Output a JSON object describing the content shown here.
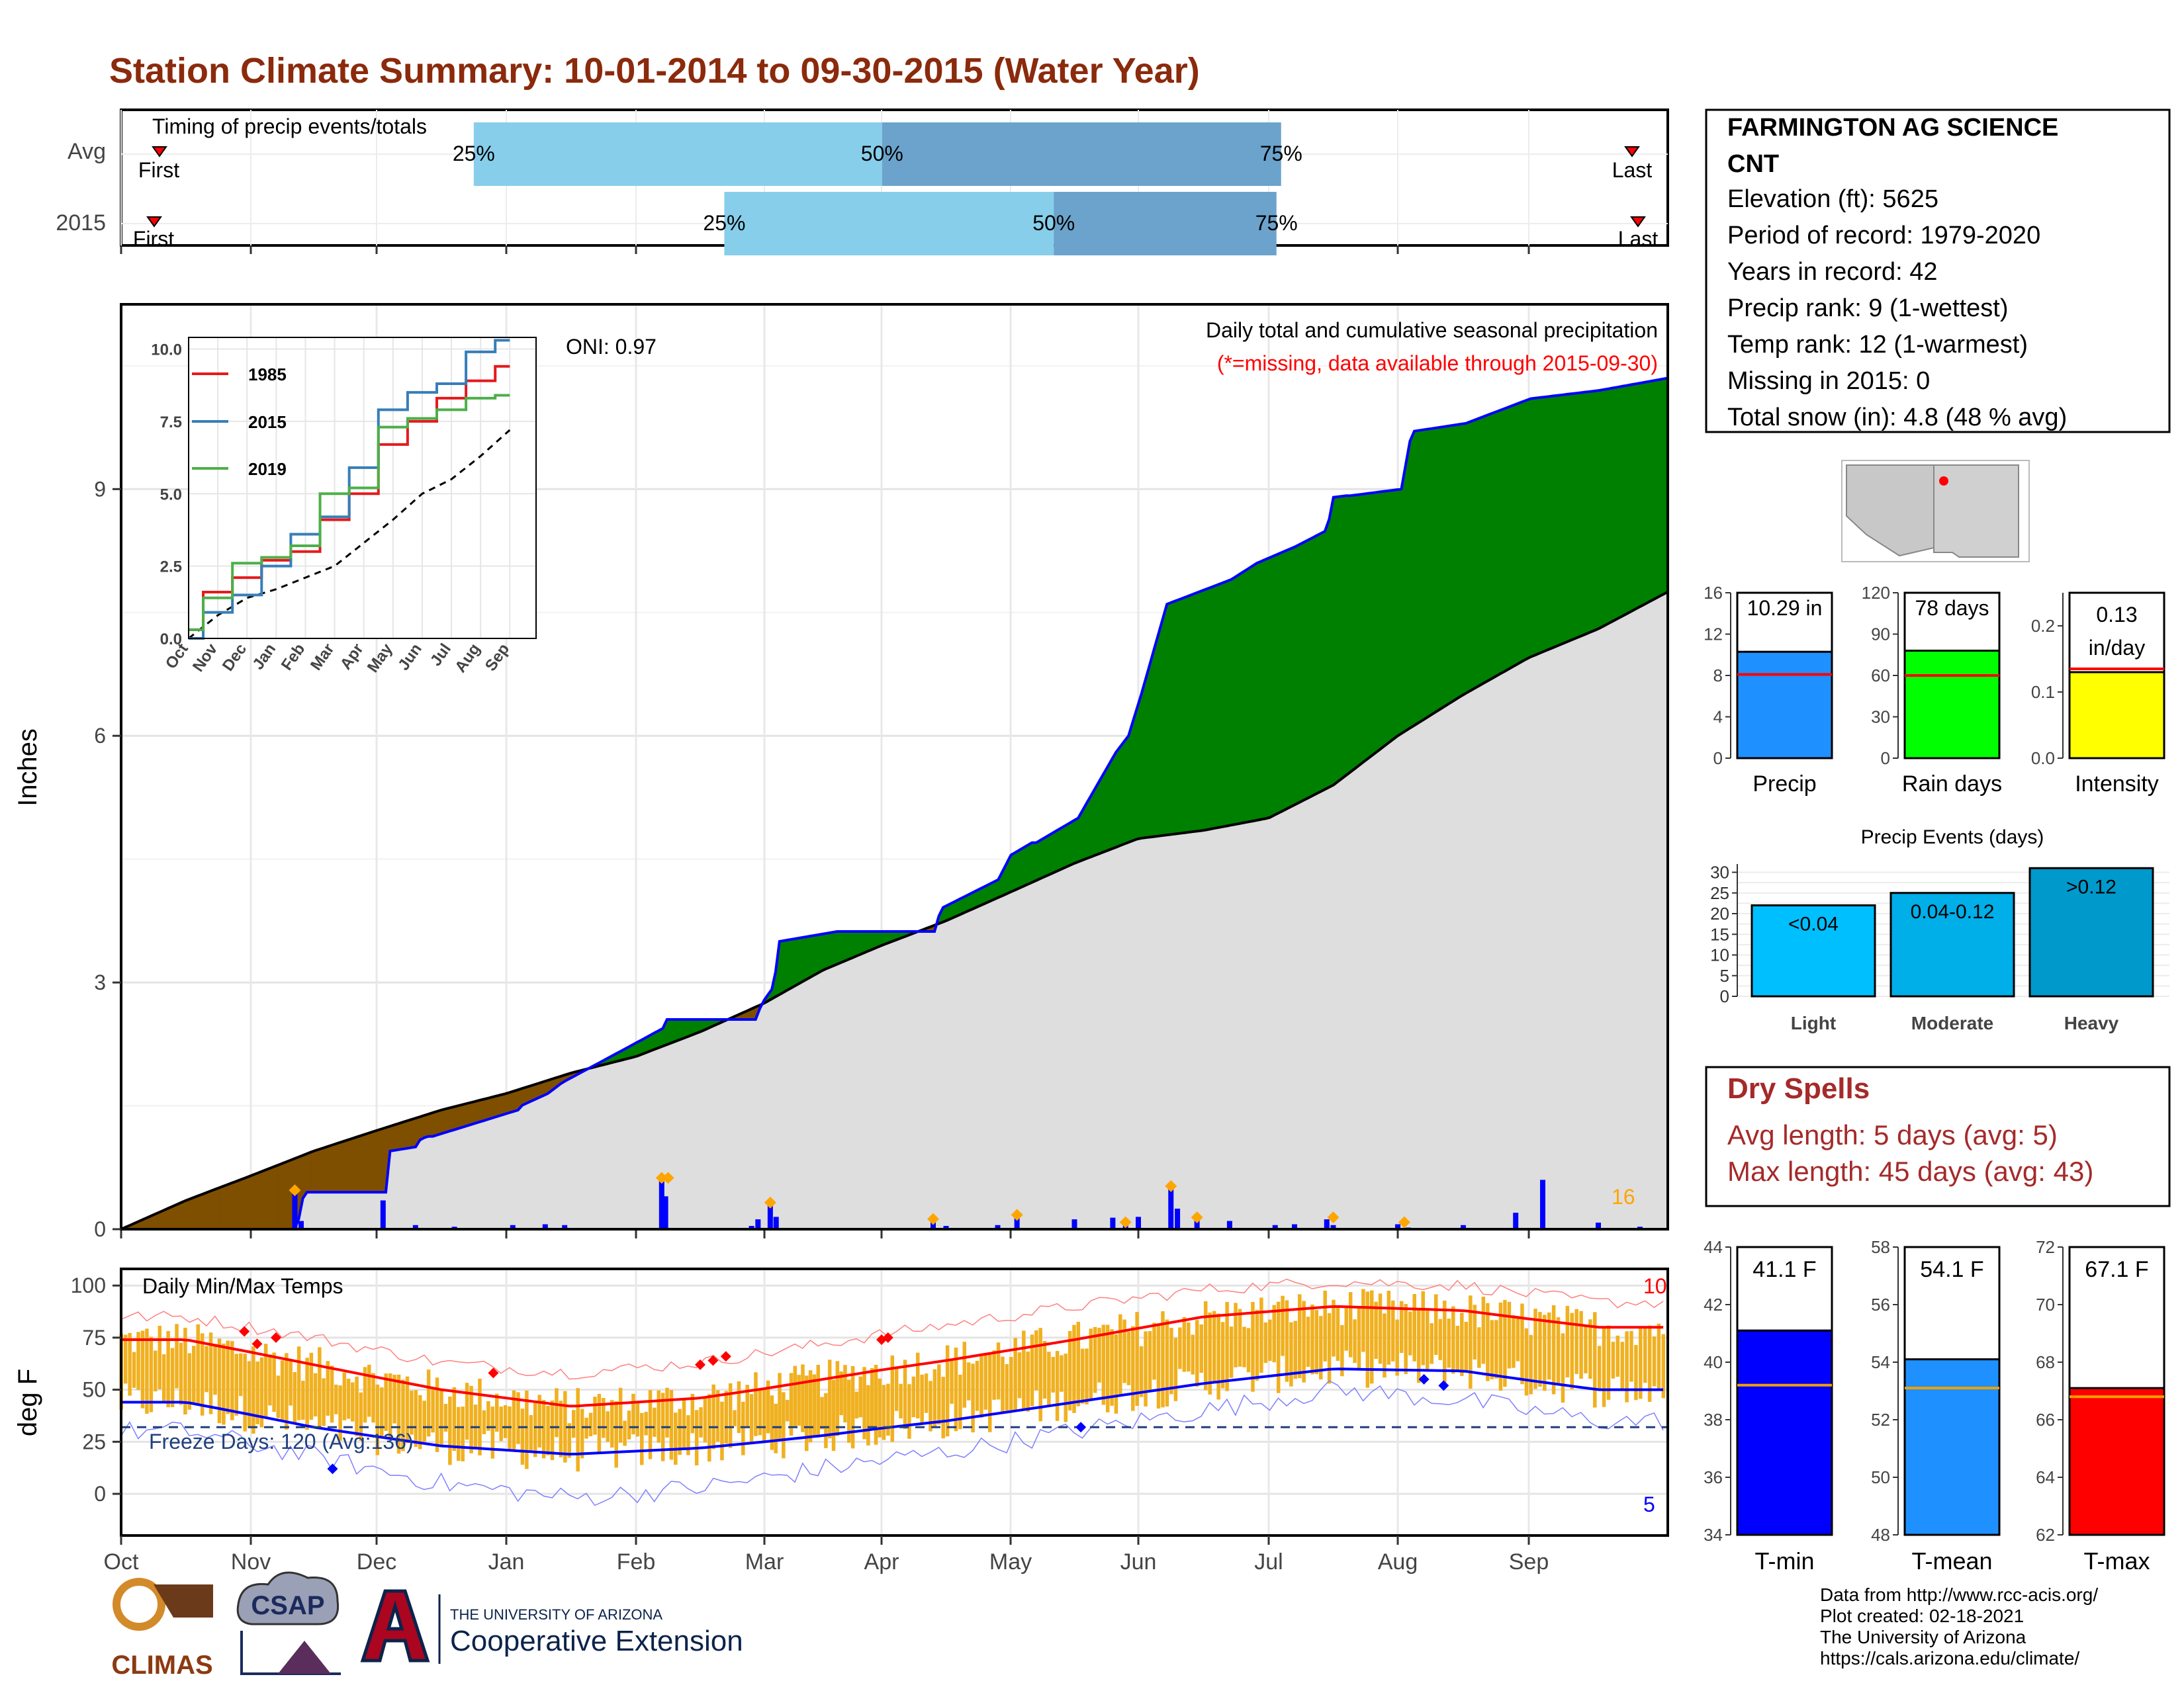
{
  "title": "Station Climate Summary: 10-01-2014 to 09-30-2015 (Water Year)",
  "colors": {
    "title": "#8b2a0c",
    "precip_line": "#0000ff",
    "surplus": "#008000",
    "deficit": "#7f4f00",
    "avg_fill": "#dedede",
    "avg_line": "#000000",
    "bar_light": "#87ceeb",
    "bar_dark": "#6ba3cc",
    "tmax": "#ff0000",
    "tmin": "#0000ff",
    "temp_bar": "#f0b020",
    "dry_spell": "#a52a2a",
    "missing_note": "#ff0000",
    "marker": "#ffa500"
  },
  "timing": {
    "title": "Timing of precip events/totals",
    "rows": [
      {
        "label": "Avg",
        "first": "First",
        "last": "Last",
        "p25": "25%",
        "p50": "50%",
        "p75": "75%",
        "v25": 0.228,
        "v50": 0.492,
        "v75": 0.75
      },
      {
        "label": "2015",
        "first": "First",
        "last": "Last",
        "p25": "25%",
        "p50": "50%",
        "p75": "75%",
        "v25": 0.39,
        "v50": 0.603,
        "v75": 0.747
      }
    ]
  },
  "precip_panel": {
    "ylabel": "Inches",
    "oni": "ONI: 0.97",
    "heading": "Daily total and cumulative seasonal precipitation",
    "missing_note": "(*=missing, data available through 2015-09-30)",
    "count_label": "16",
    "yticks": [
      "0",
      "3",
      "6",
      "9"
    ]
  },
  "inset": {
    "legend": [
      "1985",
      "2015",
      "2019"
    ],
    "series_colors": [
      "#e41a1c",
      "#377eb8",
      "#4daf4a"
    ],
    "yticks": [
      "0.0",
      "2.5",
      "5.0",
      "7.5",
      "10.0"
    ],
    "xticks": [
      "Oct",
      "Nov",
      "Dec",
      "Jan",
      "Feb",
      "Mar",
      "Apr",
      "May",
      "Jun",
      "Jul",
      "Aug",
      "Sep"
    ]
  },
  "temp_panel": {
    "ylabel": "deg F",
    "title": "Daily Min/Max Temps",
    "freeze": "Freeze Days: 120 (Avg:136)",
    "count_high": "10",
    "count_low": "5",
    "yticks": [
      "0",
      "25",
      "50",
      "75",
      "100"
    ],
    "xticks": [
      "Oct",
      "Nov",
      "Dec",
      "Jan",
      "Feb",
      "Mar",
      "Apr",
      "May",
      "Jun",
      "Jul",
      "Aug",
      "Sep"
    ]
  },
  "station": {
    "name1": "FARMINGTON AG SCIENCE",
    "name2": "CNT",
    "lines": [
      "Elevation (ft): 5625",
      "Period of record: 1979-2020",
      "Years in record: 42",
      "Precip rank: 9 (1-wettest)",
      "Temp rank: 12 (1-warmest)",
      "Missing in 2015: 0",
      "Total snow (in): 4.8 (48 % avg)"
    ]
  },
  "summary_bars": [
    {
      "label": "Precip",
      "value_label": "10.29 in",
      "value": 10.29,
      "avg": 8.1,
      "ymax": 16,
      "ticks": [
        "0",
        "4",
        "8",
        "12",
        "16"
      ],
      "color": "#1e90ff"
    },
    {
      "label": "Rain days",
      "value_label": "78 days",
      "value": 78,
      "avg": 60,
      "ymax": 120,
      "ticks": [
        "0",
        "30",
        "60",
        "90",
        "120"
      ],
      "color": "#00ff00"
    },
    {
      "label": "Intensity",
      "value_label": "0.13 in/day",
      "value_label_a": "0.13",
      "value_label_b": "in/day",
      "value": 0.13,
      "avg": 0.135,
      "ymax": 0.25,
      "ticks": [
        "0.0",
        "0.1",
        "0.2"
      ],
      "color": "#ffff00"
    }
  ],
  "events": {
    "title": "Precip Events (days)",
    "categories": [
      "Light",
      "Moderate",
      "Heavy"
    ],
    "labels": [
      "<0.04",
      "0.04-0.12",
      ">0.12"
    ],
    "values": [
      22,
      25,
      31
    ],
    "ticks": [
      "0",
      "5",
      "10",
      "15",
      "20",
      "25",
      "30"
    ],
    "colors": [
      "#00bfff",
      "#00aee8",
      "#0099cc"
    ]
  },
  "dry_spells": {
    "title": "Dry Spells",
    "avg": "Avg length: 5 days (avg: 5)",
    "max": "Max length: 45 days (avg: 43)"
  },
  "temp_bars": [
    {
      "label": "T-min",
      "value_label": "41.1 F",
      "value": 41.1,
      "avg": 39.2,
      "ymin": 34,
      "ymax": 44,
      "ticks": [
        "34",
        "36",
        "38",
        "40",
        "42",
        "44"
      ],
      "color": "#0000ff"
    },
    {
      "label": "T-mean",
      "value_label": "54.1 F",
      "value": 54.1,
      "avg": 53.1,
      "ymin": 48,
      "ymax": 58,
      "ticks": [
        "48",
        "50",
        "52",
        "54",
        "56",
        "58"
      ],
      "color": "#1e90ff"
    },
    {
      "label": "T-max",
      "value_label": "67.1 F",
      "value": 67.1,
      "avg": 66.8,
      "ymin": 62,
      "ymax": 72,
      "ticks": [
        "62",
        "64",
        "66",
        "68",
        "70",
        "72"
      ],
      "color": "#ff0000"
    }
  ],
  "footer": {
    "lines": [
      "Data from http://www.rcc-acis.org/",
      "Plot created: 02-18-2021",
      "The University of Arizona",
      "https://cals.arizona.edu/climate/"
    ],
    "climas": "CLIMAS",
    "csap": "CSAP",
    "ua_small": "THE UNIVERSITY OF ARIZONA",
    "ua_big": "Cooperative Extension"
  },
  "chart_data": [
    {
      "type": "area",
      "title": "Daily total and cumulative seasonal precipitation",
      "ylabel": "Inches",
      "ylim": [
        0,
        11.2
      ],
      "x_unit": "month of water year",
      "x_range": [
        "Oct",
        "Sep"
      ],
      "series": [
        {
          "name": "2015",
          "x": [
            0,
            1.35,
            1.41,
            2.09,
            2.1,
            2.3,
            2.34,
            3.07,
            3.09,
            3.3,
            3.41,
            4.21,
            4.23,
            4.9,
            4.95,
            5.05,
            5.1,
            5.6,
            5.65,
            6.4,
            6.45,
            6.9,
            7.0,
            7.5,
            7.8,
            7.9,
            8.0,
            8.2,
            8.7,
            8.9,
            9.2,
            9.45,
            9.5,
            10.0,
            10.08,
            10.5,
            11.0,
            11.5,
            12.0
          ],
          "values": [
            0,
            0,
            0.45,
            0.45,
            0.95,
            1.0,
            1.1,
            1.45,
            1.5,
            1.65,
            1.78,
            2.45,
            2.55,
            2.55,
            2.75,
            2.95,
            3.5,
            3.62,
            3.62,
            3.62,
            3.9,
            4.25,
            4.55,
            5.0,
            5.8,
            6.0,
            6.5,
            7.6,
            7.9,
            8.1,
            8.3,
            8.5,
            8.9,
            9.0,
            9.7,
            9.8,
            10.1,
            10.2,
            10.35
          ]
        },
        {
          "name": "Average",
          "x": [
            0,
            0.5,
            1,
            1.5,
            2,
            2.5,
            3,
            3.5,
            4,
            4.5,
            5,
            5.5,
            6,
            6.5,
            7,
            7.5,
            8,
            8.5,
            9,
            9.5,
            10,
            10.5,
            11,
            11.5,
            12
          ],
          "values": [
            0,
            0.35,
            0.65,
            0.95,
            1.2,
            1.45,
            1.65,
            1.9,
            2.1,
            2.4,
            2.75,
            3.15,
            3.45,
            3.75,
            4.1,
            4.45,
            4.75,
            4.85,
            5.0,
            5.4,
            6.0,
            6.5,
            6.95,
            7.3,
            7.75
          ]
        }
      ]
    },
    {
      "type": "line",
      "title": "",
      "ylim": [
        0,
        10.2
      ],
      "categories": [
        "Oct",
        "Nov",
        "Dec",
        "Jan",
        "Feb",
        "Mar",
        "Apr",
        "May",
        "Jun",
        "Jul",
        "Aug",
        "Sep"
      ],
      "series": [
        {
          "name": "1985",
          "values": [
            0.3,
            1.6,
            2.1,
            2.7,
            3.0,
            4.1,
            5.0,
            6.7,
            7.5,
            8.3,
            8.9,
            9.4
          ]
        },
        {
          "name": "2015",
          "values": [
            0.0,
            0.9,
            1.5,
            2.5,
            3.6,
            4.2,
            5.9,
            7.9,
            8.5,
            8.8,
            9.9,
            10.3
          ]
        },
        {
          "name": "2019",
          "values": [
            0.3,
            1.4,
            2.6,
            2.8,
            3.2,
            5.0,
            5.2,
            7.3,
            7.6,
            7.9,
            8.3,
            8.4
          ]
        }
      ]
    },
    {
      "type": "line",
      "title": "Daily Min/Max Temps",
      "ylabel": "deg F",
      "ylim": [
        -20,
        108
      ],
      "categories": [
        "Oct",
        "Nov",
        "Dec",
        "Jan",
        "Feb",
        "Mar",
        "Apr",
        "May",
        "Jun",
        "Jul",
        "Aug",
        "Sep"
      ],
      "series": [
        {
          "name": "Avg max",
          "values": [
            74,
            62,
            50,
            42,
            46,
            55,
            64,
            74,
            85,
            90,
            88,
            80
          ]
        },
        {
          "name": "Avg min",
          "values": [
            44,
            32,
            23,
            19,
            22,
            28,
            35,
            44,
            53,
            60,
            59,
            50
          ]
        },
        {
          "name": "Record high",
          "values": [
            85,
            75,
            63,
            58,
            63,
            72,
            81,
            90,
            98,
            102,
            100,
            92
          ]
        },
        {
          "name": "Record low",
          "values": [
            30,
            18,
            5,
            -2,
            3,
            12,
            20,
            30,
            40,
            50,
            45,
            35
          ]
        }
      ],
      "freeze_line": 32
    },
    {
      "type": "bar",
      "title": "Precip Events (days)",
      "categories": [
        "Light",
        "Moderate",
        "Heavy"
      ],
      "values": [
        22,
        25,
        31
      ],
      "ylim": [
        0,
        32
      ]
    }
  ]
}
